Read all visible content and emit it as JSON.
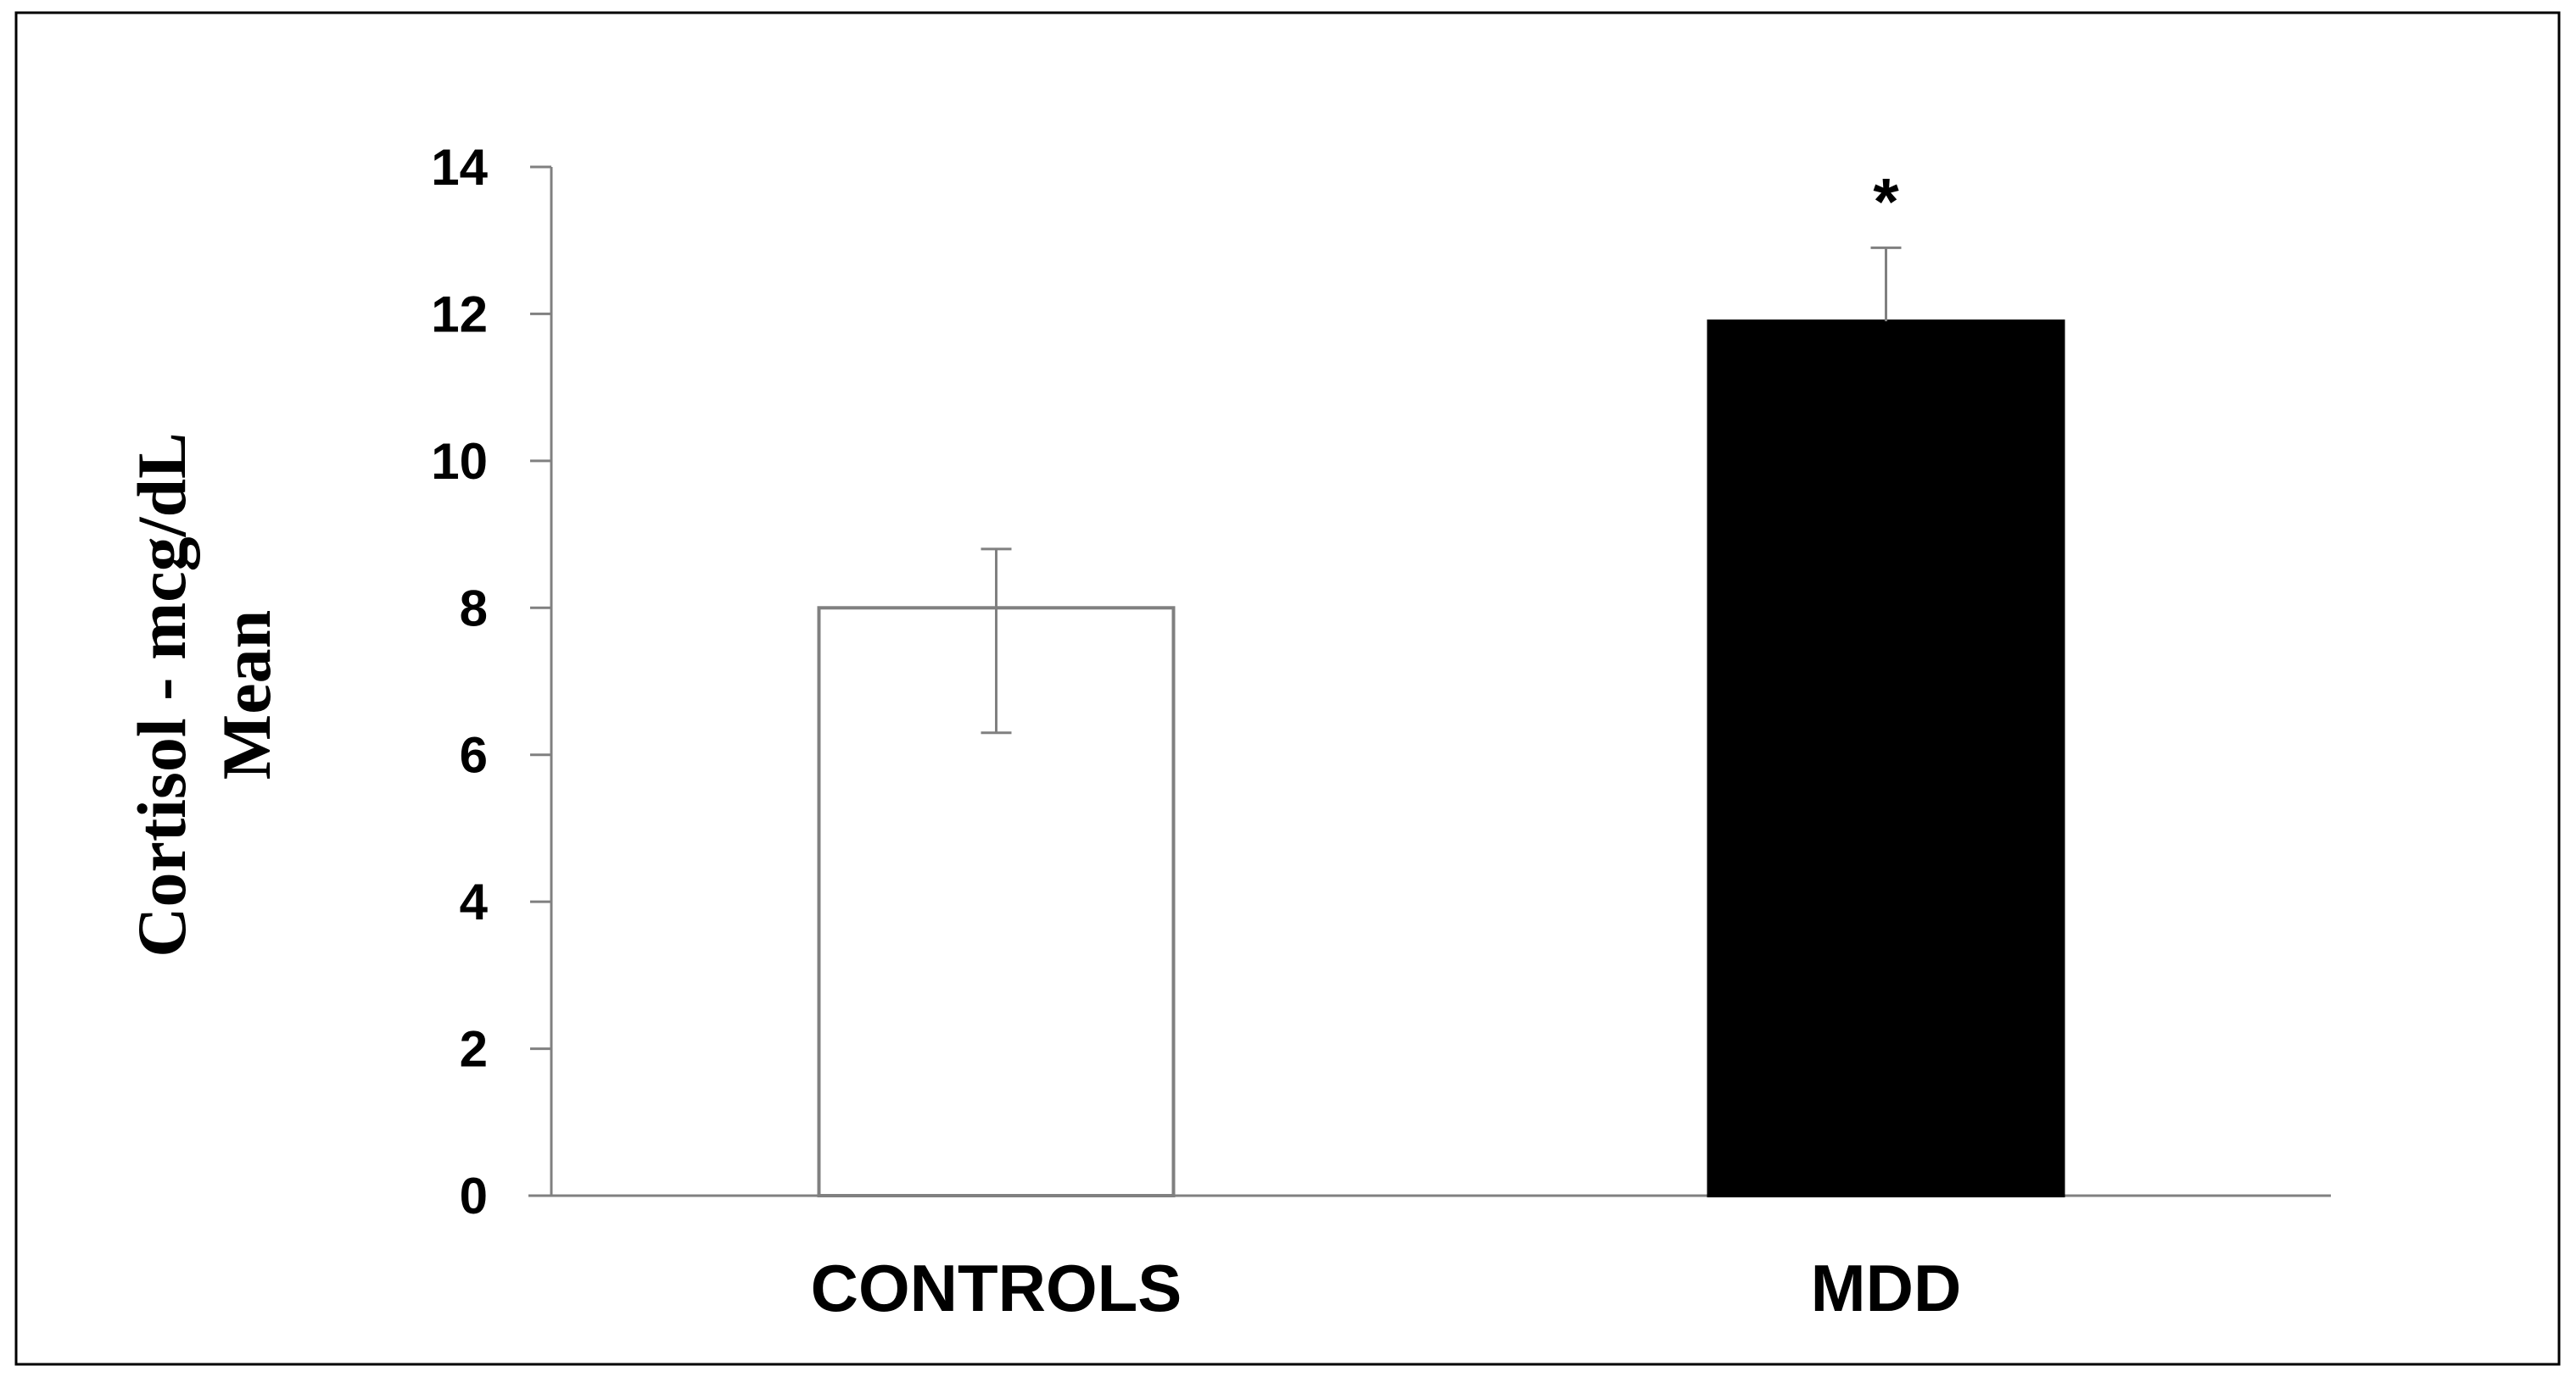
{
  "chart_data": {
    "type": "bar",
    "title": "",
    "xlabel": "",
    "ylabel_lines": [
      "Cortisol - mcg/dL",
      "Mean"
    ],
    "categories": [
      "CONTROLS",
      "MDD"
    ],
    "values": [
      8.0,
      11.9
    ],
    "error_upper": [
      8.8,
      12.9
    ],
    "error_lower": [
      6.3,
      null
    ],
    "bar_colors": [
      "#ffffff",
      "#000000"
    ],
    "bar_edge_colors": [
      "#808080",
      "#000000"
    ],
    "ylim": [
      0,
      14
    ],
    "yticks": [
      "0",
      "2",
      "4",
      "6",
      "8",
      "10",
      "12",
      "14"
    ],
    "grid": false,
    "annotations": [
      {
        "category": "MDD",
        "text": "*"
      }
    ]
  }
}
